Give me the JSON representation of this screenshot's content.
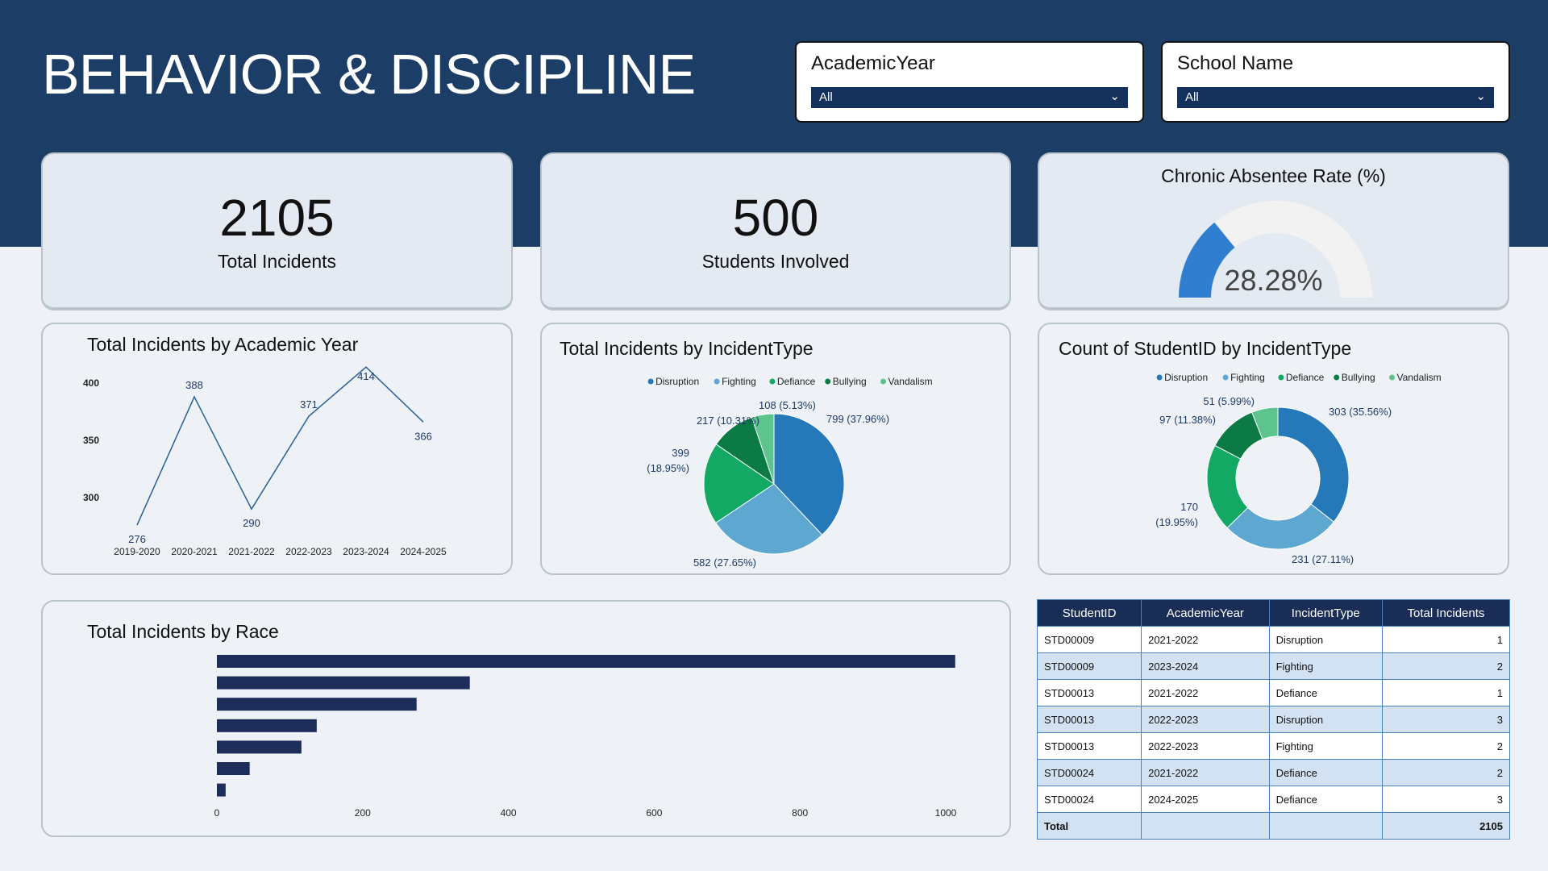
{
  "header": {
    "title": "BEHAVIOR & DISCIPLINE"
  },
  "filters": [
    {
      "label": "AcademicYear",
      "value": "All"
    },
    {
      "label": "School Name",
      "value": "All"
    }
  ],
  "kpis": {
    "total_incidents": {
      "value": "2105",
      "label": "Total Incidents"
    },
    "students_involved": {
      "value": "500",
      "label": "Students Involved"
    }
  },
  "gauge": {
    "title": "Chronic Absentee Rate (%)",
    "value_label": "28.28%",
    "value": 28.28,
    "max": 100,
    "fill_color": "#2f7ed0",
    "track_color": "#f2f2f2"
  },
  "colors": {
    "header": "#1b3d66",
    "Disruption": "#2579b8",
    "Fighting": "#5ea7d1",
    "Defiance": "#13a864",
    "Bullying": "#0b7a45",
    "Vandalism": "#5cc48c",
    "bars": "#1b2d58"
  },
  "chart_data": [
    {
      "type": "line",
      "title": "Total Incidents by Academic Year",
      "categories": [
        "2019-2020",
        "2020-2021",
        "2021-2022",
        "2022-2023",
        "2023-2024",
        "2024-2025"
      ],
      "values": [
        276,
        388,
        290,
        371,
        414,
        366
      ],
      "yticks": [
        "300",
        "350",
        "400"
      ],
      "color": "#2a5f9a"
    },
    {
      "type": "pie",
      "title": "Total Incidents by IncidentType",
      "categories": [
        "Disruption",
        "Fighting",
        "Defiance",
        "Bullying",
        "Vandalism"
      ],
      "values": [
        799,
        582,
        399,
        217,
        108
      ],
      "labels": [
        "799 (37.96%)",
        "582 (27.65%)",
        "399 (18.95%)",
        "217 (10.31%)",
        "108 (5.13%)"
      ],
      "legend": "top"
    },
    {
      "type": "donut",
      "title": "Count of StudentID by IncidentType",
      "categories": [
        "Disruption",
        "Fighting",
        "Defiance",
        "Bullying",
        "Vandalism"
      ],
      "values": [
        303,
        231,
        170,
        97,
        51
      ],
      "labels": [
        "303 (35.56%)",
        "231 (27.11%)",
        "170 (19.95%)",
        "97 (11.38%)",
        "51 (5.99%)"
      ],
      "legend": "top"
    },
    {
      "type": "bar",
      "orientation": "horizontal",
      "title": "Total Incidents by Race",
      "values": [
        1013,
        347,
        274,
        137,
        116,
        45,
        12
      ],
      "xticks": [
        "0",
        "200",
        "400",
        "600",
        "800",
        "1000"
      ],
      "xlim": [
        0,
        1000
      ]
    }
  ],
  "table": {
    "headers": [
      "StudentID",
      "AcademicYear",
      "IncidentType",
      "Total Incidents"
    ],
    "rows": [
      [
        "STD00009",
        "2021-2022",
        "Disruption",
        "1"
      ],
      [
        "STD00009",
        "2023-2024",
        "Fighting",
        "2"
      ],
      [
        "STD00013",
        "2021-2022",
        "Defiance",
        "1"
      ],
      [
        "STD00013",
        "2022-2023",
        "Disruption",
        "3"
      ],
      [
        "STD00013",
        "2022-2023",
        "Fighting",
        "2"
      ],
      [
        "STD00024",
        "2021-2022",
        "Defiance",
        "2"
      ],
      [
        "STD00024",
        "2024-2025",
        "Defiance",
        "3"
      ]
    ],
    "total": {
      "label": "Total",
      "value": "2105"
    }
  }
}
